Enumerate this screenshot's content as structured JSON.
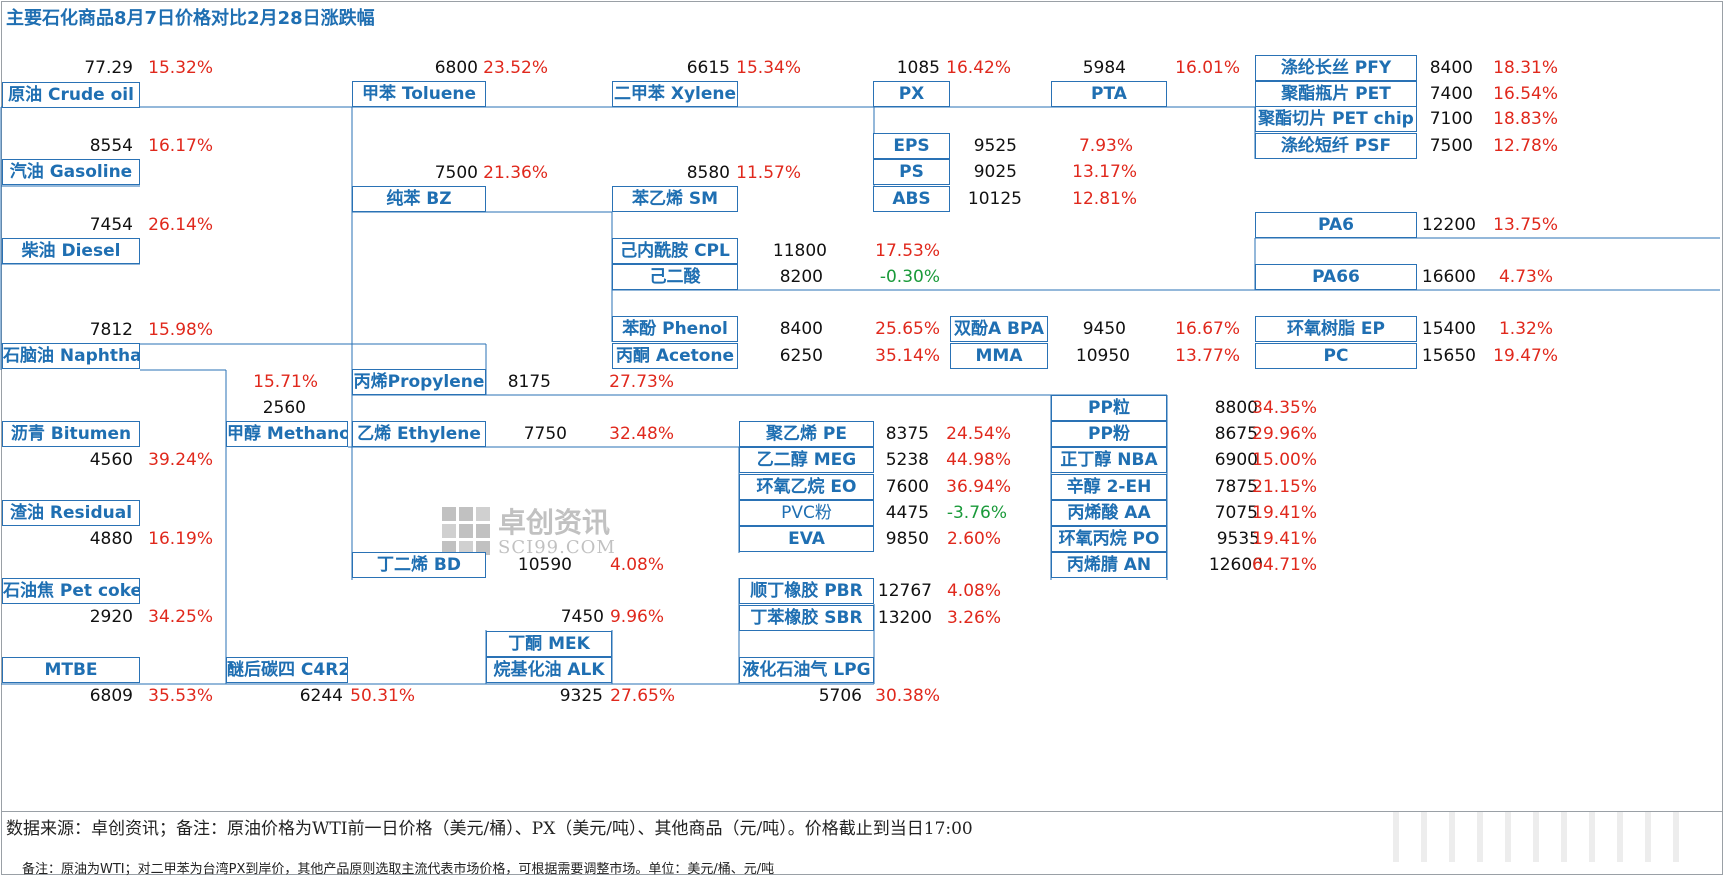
{
  "title": "主要石化商品8月7日价格对比2月28日涨跌幅",
  "products": [
    {
      "id": "crude",
      "label": "原油 Crude oil",
      "value": "77.29",
      "pct": "15.32%"
    },
    {
      "id": "gasoline",
      "label": "汽油 Gasoline",
      "value": "8554",
      "pct": "16.17%"
    },
    {
      "id": "diesel",
      "label": "柴油 Diesel",
      "value": "7454",
      "pct": "26.14%"
    },
    {
      "id": "naphtha",
      "label": "石脑油 Naphtha",
      "value": "7812",
      "pct": "15.98%"
    },
    {
      "id": "bitumen",
      "label": "沥青 Bitumen",
      "value": "4560",
      "pct": "39.24%"
    },
    {
      "id": "residual",
      "label": "渣油 Residual",
      "value": "4880",
      "pct": "16.19%"
    },
    {
      "id": "petcoke",
      "label": "石油焦 Pet coke",
      "value": "2920",
      "pct": "34.25%"
    },
    {
      "id": "mtbe",
      "label": "MTBE",
      "value": "6809",
      "pct": "35.53%"
    },
    {
      "id": "methanol",
      "label": "甲醇 Methanol",
      "value": "2560",
      "pct": "15.71%"
    },
    {
      "id": "c4r2",
      "label": "醚后碳四 C4R2",
      "value": "6244",
      "pct": "50.31%"
    },
    {
      "id": "toluene",
      "label": "甲苯 Toluene",
      "value": "6800",
      "pct": "23.52%"
    },
    {
      "id": "bz",
      "label": "纯苯 BZ",
      "value": "7500",
      "pct": "21.36%"
    },
    {
      "id": "propylene",
      "label": "丙烯Propylene",
      "value": "8175",
      "pct": "27.73%"
    },
    {
      "id": "ethylene",
      "label": "乙烯 Ethylene",
      "value": "7750",
      "pct": "32.48%"
    },
    {
      "id": "bd",
      "label": "丁二烯 BD",
      "value": "10590",
      "pct": "4.08%"
    },
    {
      "id": "mek",
      "label": "丁酮 MEK",
      "value": "7450",
      "pct": "9.96%"
    },
    {
      "id": "alk",
      "label": "烷基化油 ALK",
      "value": "9325",
      "pct": "27.65%"
    },
    {
      "id": "xylene",
      "label": "二甲苯 Xylene",
      "value": "6615",
      "pct": "15.34%"
    },
    {
      "id": "sm",
      "label": "苯乙烯 SM",
      "value": "8580",
      "pct": "11.57%"
    },
    {
      "id": "cpl",
      "label": "己内酰胺 CPL",
      "value": "11800",
      "pct": "17.53%"
    },
    {
      "id": "adipic",
      "label": "己二酸",
      "value": "8200",
      "pct": "-0.30%"
    },
    {
      "id": "phenol",
      "label": "苯酚 Phenol",
      "value": "8400",
      "pct": "25.65%"
    },
    {
      "id": "acetone",
      "label": "丙酮 Acetone",
      "value": "6250",
      "pct": "35.14%"
    },
    {
      "id": "pe",
      "label": "聚乙烯 PE",
      "value": "8375",
      "pct": "24.54%"
    },
    {
      "id": "meg",
      "label": "乙二醇 MEG",
      "value": "5238",
      "pct": "44.98%"
    },
    {
      "id": "eo",
      "label": "环氧乙烷 EO",
      "value": "7600",
      "pct": "36.94%"
    },
    {
      "id": "pvc",
      "label": "PVC粉",
      "value": "4475",
      "pct": "-3.76%"
    },
    {
      "id": "eva",
      "label": "EVA",
      "value": "9850",
      "pct": "2.60%"
    },
    {
      "id": "pbr",
      "label": "顺丁橡胶 PBR",
      "value": "12767",
      "pct": "4.08%"
    },
    {
      "id": "sbr",
      "label": "丁苯橡胶 SBR",
      "value": "13200",
      "pct": "3.26%"
    },
    {
      "id": "lpg",
      "label": "液化石油气 LPG",
      "value": "5706",
      "pct": "30.38%"
    },
    {
      "id": "px",
      "label": "PX",
      "value": "1085",
      "pct": "16.42%"
    },
    {
      "id": "eps",
      "label": "EPS",
      "value": "9525",
      "pct": "7.93%"
    },
    {
      "id": "ps",
      "label": "PS",
      "value": "9025",
      "pct": "13.17%"
    },
    {
      "id": "abs",
      "label": "ABS",
      "value": "10125",
      "pct": "12.81%"
    },
    {
      "id": "bpa",
      "label": "双酚A BPA",
      "value": "9450",
      "pct": "16.67%"
    },
    {
      "id": "mma",
      "label": "MMA",
      "value": "10950",
      "pct": "13.77%"
    },
    {
      "id": "pta",
      "label": "PTA",
      "value": "5984",
      "pct": "16.01%"
    },
    {
      "id": "ppgran",
      "label": "PP粒",
      "value": "8800",
      "pct": "34.35%"
    },
    {
      "id": "pppow",
      "label": "PP粉",
      "value": "8675",
      "pct": "29.96%"
    },
    {
      "id": "nba",
      "label": "正丁醇 NBA",
      "value": "6900",
      "pct": "15.00%"
    },
    {
      "id": "eh",
      "label": "辛醇 2-EH",
      "value": "7875",
      "pct": "21.15%"
    },
    {
      "id": "aa",
      "label": "丙烯酸 AA",
      "value": "7075",
      "pct": "19.41%"
    },
    {
      "id": "po",
      "label": "环氧丙烷 PO",
      "value": "9535",
      "pct": "19.41%"
    },
    {
      "id": "an",
      "label": "丙烯腈 AN",
      "value": "12600",
      "pct": "64.71%"
    },
    {
      "id": "pfy",
      "label": "涤纶长丝 PFY",
      "value": "8400",
      "pct": "18.31%"
    },
    {
      "id": "pet",
      "label": "聚酯瓶片 PET",
      "value": "7400",
      "pct": "16.54%"
    },
    {
      "id": "petchip",
      "label": "聚酯切片 PET chip",
      "value": "7100",
      "pct": "18.83%"
    },
    {
      "id": "psf",
      "label": "涤纶短纤 PSF",
      "value": "7500",
      "pct": "12.78%"
    },
    {
      "id": "pa6",
      "label": "PA6",
      "value": "12200",
      "pct": "13.75%"
    },
    {
      "id": "pa66",
      "label": "PA66",
      "value": "16600",
      "pct": "4.73%"
    },
    {
      "id": "ep",
      "label": "环氧树脂 EP",
      "value": "15400",
      "pct": "1.32%"
    },
    {
      "id": "pc",
      "label": "PC",
      "value": "15650",
      "pct": "19.47%"
    }
  ],
  "watermark": {
    "main": "卓创资讯",
    "sub": "SCI99.COM"
  },
  "footer": {
    "source_note": "数据来源：卓创资讯；备注：原油价格为WTI前一日价格（美元/桶）、PX（美元/吨）、其他商品（元/吨）。价格截止到当日17:00",
    "small_note": "备注：原油为WTI；对二甲苯为台湾PX到岸价，其他产品原则选取主流代表市场价格，可根据需要调整市场。单位：美元/桶、元/吨"
  },
  "colors": {
    "box_border": "#2a72b5",
    "label": "#1f6fb2",
    "positive": "#e0281c",
    "negative": "#1a9a3a",
    "line": "#2a72b5"
  }
}
